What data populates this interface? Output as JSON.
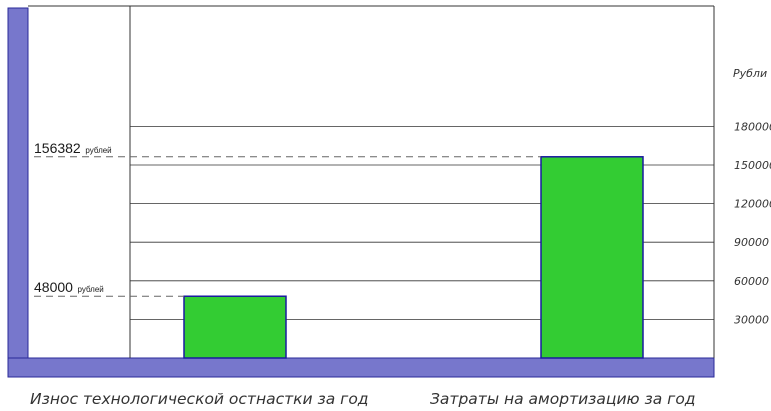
{
  "chart_data": {
    "type": "bar",
    "categories": [
      "Износ технологической остнастки за год",
      "Затраты на амортизацию за год"
    ],
    "values": [
      48000,
      156382
    ],
    "ylabel": "Рубли",
    "ytick_labels": [
      "30000",
      "60000",
      "90000",
      "120000",
      "150000",
      "180000"
    ],
    "ylim": [
      0,
      225000
    ],
    "grid": true,
    "annotations": [
      {
        "value": "48000",
        "unit": "рублей"
      },
      {
        "value": "156382",
        "unit": "рублей"
      }
    ],
    "colors": {
      "bar_fill": "#33cc33",
      "bar_stroke": "#1a1aa0",
      "frame": "#7777cc",
      "frame_stroke": "#2a2a99",
      "grid": "#333333",
      "dash": "#666666"
    }
  }
}
